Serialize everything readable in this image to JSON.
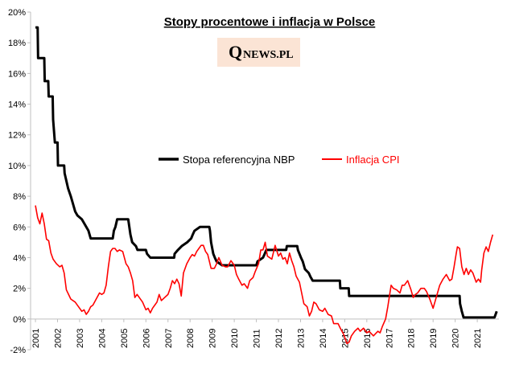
{
  "chart_data": {
    "type": "line",
    "title": "Stopy procentowe i inflacja w Polsce",
    "logo": {
      "initial": "Q",
      "rest": "NEWS.PL"
    },
    "xlim": [
      2000.78,
      2021.98
    ],
    "xticks": [
      2001,
      2002,
      2003,
      2004,
      2005,
      2006,
      2007,
      2008,
      2009,
      2010,
      2011,
      2012,
      2013,
      2014,
      2015,
      2016,
      2017,
      2018,
      2019,
      2020,
      2021
    ],
    "ylim": [
      -2,
      20
    ],
    "yticks": [
      {
        "value": -2,
        "label": "-2%"
      },
      {
        "value": 0,
        "label": "0%"
      },
      {
        "value": 2,
        "label": "2%"
      },
      {
        "value": 4,
        "label": "4%"
      },
      {
        "value": 6,
        "label": "6%"
      },
      {
        "value": 8,
        "label": "8%"
      },
      {
        "value": 10,
        "label": "10%"
      },
      {
        "value": 12,
        "label": "12%"
      },
      {
        "value": 14,
        "label": "14%"
      },
      {
        "value": 16,
        "label": "16%"
      },
      {
        "value": 18,
        "label": "18%"
      },
      {
        "value": 20,
        "label": "20%"
      }
    ],
    "grid": false,
    "series": [
      {
        "name": "Stopa referencyjna NBP",
        "color": "#000000",
        "x": [
          2001,
          2001.1,
          2001.12,
          2001.4,
          2001.42,
          2001.58,
          2001.6,
          2001.78,
          2001.8,
          2001.88,
          2002.0,
          2002.02,
          2002.3,
          2002.32,
          2002.4,
          2002.48,
          2002.6,
          2002.7,
          2002.8,
          2002.9,
          2003.1,
          2003.2,
          2003.3,
          2003.4,
          2003.5,
          2004.5,
          2004.55,
          2004.62,
          2004.7,
          2005.2,
          2005.25,
          2005.3,
          2005.38,
          2005.55,
          2005.62,
          2006.0,
          2006.05,
          2006.2,
          2007.28,
          2007.3,
          2007.45,
          2007.62,
          2007.87,
          2008.05,
          2008.12,
          2008.2,
          2008.45,
          2008.87,
          2008.9,
          2008.95,
          2009.05,
          2009.12,
          2009.2,
          2009.45,
          2011.0,
          2011.05,
          2011.3,
          2011.38,
          2011.45,
          2012.35,
          2012.38,
          2012.85,
          2012.88,
          2012.95,
          2013.02,
          2013.1,
          2013.2,
          2013.37,
          2013.45,
          2013.55,
          2014.78,
          2014.8,
          2015.18,
          2015.2,
          2020.2,
          2020.22,
          2020.3,
          2020.38,
          2021.78,
          2021.88
        ],
        "values": [
          19,
          19,
          17,
          17,
          15.5,
          15.5,
          14.5,
          14.5,
          13,
          11.5,
          11.5,
          10,
          10,
          9.5,
          9,
          8.5,
          8,
          7.5,
          7,
          6.75,
          6.5,
          6.25,
          6,
          5.75,
          5.25,
          5.25,
          5.75,
          6,
          6.5,
          6.5,
          6,
          5.5,
          5,
          4.75,
          4.5,
          4.5,
          4.25,
          4,
          4,
          4.25,
          4.5,
          4.75,
          5,
          5.25,
          5.5,
          5.75,
          6,
          6,
          5.75,
          5,
          4.25,
          4,
          3.75,
          3.5,
          3.5,
          3.75,
          4,
          4.25,
          4.5,
          4.5,
          4.75,
          4.75,
          4.5,
          4.25,
          4,
          3.75,
          3.25,
          3,
          2.75,
          2.5,
          2.5,
          2,
          2,
          1.5,
          1.5,
          1,
          0.5,
          0.1,
          0.1,
          0.5
        ]
      },
      {
        "name": "Inflacja CPI",
        "color": "#ff0000",
        "x": [
          2001.0,
          2001.1,
          2001.2,
          2001.3,
          2001.4,
          2001.5,
          2001.6,
          2001.7,
          2001.8,
          2001.95,
          2002.1,
          2002.2,
          2002.3,
          2002.4,
          2002.5,
          2002.6,
          2002.8,
          2002.95,
          2003.1,
          2003.2,
          2003.3,
          2003.4,
          2003.5,
          2003.6,
          2003.75,
          2003.9,
          2004.0,
          2004.1,
          2004.2,
          2004.3,
          2004.4,
          2004.5,
          2004.6,
          2004.7,
          2004.8,
          2004.95,
          2005.1,
          2005.2,
          2005.3,
          2005.4,
          2005.5,
          2005.6,
          2005.7,
          2005.85,
          2006.0,
          2006.1,
          2006.2,
          2006.3,
          2006.4,
          2006.5,
          2006.6,
          2006.7,
          2006.85,
          2007.0,
          2007.1,
          2007.2,
          2007.3,
          2007.4,
          2007.5,
          2007.6,
          2007.7,
          2007.85,
          2008.0,
          2008.1,
          2008.2,
          2008.3,
          2008.4,
          2008.5,
          2008.6,
          2008.7,
          2008.8,
          2008.95,
          2009.1,
          2009.2,
          2009.3,
          2009.45,
          2009.6,
          2009.7,
          2009.85,
          2010.0,
          2010.1,
          2010.2,
          2010.35,
          2010.45,
          2010.6,
          2010.7,
          2010.85,
          2010.95,
          2011.1,
          2011.2,
          2011.3,
          2011.4,
          2011.5,
          2011.6,
          2011.7,
          2011.85,
          2012.0,
          2012.1,
          2012.2,
          2012.3,
          2012.4,
          2012.5,
          2012.6,
          2012.7,
          2012.8,
          2012.95,
          2013.05,
          2013.15,
          2013.3,
          2013.4,
          2013.5,
          2013.6,
          2013.7,
          2013.85,
          2014.0,
          2014.1,
          2014.25,
          2014.4,
          2014.5,
          2014.6,
          2014.7,
          2014.8,
          2014.95,
          2015.1,
          2015.2,
          2015.3,
          2015.45,
          2015.6,
          2015.7,
          2015.85,
          2016.0,
          2016.1,
          2016.3,
          2016.5,
          2016.6,
          2016.7,
          2016.85,
          2016.95,
          2017.1,
          2017.2,
          2017.35,
          2017.5,
          2017.6,
          2017.7,
          2017.85,
          2018.0,
          2018.1,
          2018.2,
          2018.3,
          2018.45,
          2018.6,
          2018.7,
          2018.85,
          2019.0,
          2019.1,
          2019.2,
          2019.3,
          2019.45,
          2019.6,
          2019.75,
          2019.85,
          2019.95,
          2020.05,
          2020.1,
          2020.2,
          2020.3,
          2020.4,
          2020.5,
          2020.6,
          2020.7,
          2020.8,
          2020.95,
          2021.05,
          2021.15,
          2021.2,
          2021.3,
          2021.4,
          2021.5,
          2021.6,
          2021.7
        ],
        "values": [
          7.4,
          6.6,
          6.2,
          6.9,
          6.2,
          5.2,
          5.1,
          4.3,
          3.9,
          3.6,
          3.4,
          3.5,
          3.0,
          1.9,
          1.6,
          1.3,
          1.1,
          0.8,
          0.5,
          0.6,
          0.3,
          0.5,
          0.8,
          0.9,
          1.3,
          1.7,
          1.6,
          1.7,
          2.2,
          3.4,
          4.4,
          4.6,
          4.6,
          4.4,
          4.5,
          4.4,
          3.6,
          3.4,
          3.0,
          2.5,
          1.4,
          1.6,
          1.4,
          1.1,
          0.6,
          0.7,
          0.4,
          0.7,
          0.9,
          1.1,
          1.6,
          1.2,
          1.4,
          1.6,
          2.0,
          2.5,
          2.3,
          2.6,
          2.3,
          1.5,
          3.0,
          3.6,
          4.0,
          4.2,
          4.1,
          4.4,
          4.6,
          4.8,
          4.8,
          4.4,
          4.2,
          3.3,
          3.3,
          3.6,
          4.0,
          3.5,
          3.4,
          3.4,
          3.8,
          3.5,
          2.9,
          2.6,
          2.2,
          2.3,
          2.0,
          2.5,
          2.7,
          3.1,
          3.6,
          4.5,
          4.5,
          5.0,
          4.1,
          4.0,
          3.9,
          4.8,
          4.1,
          4.3,
          3.9,
          4.0,
          3.6,
          4.3,
          3.8,
          3.4,
          2.8,
          2.4,
          1.7,
          1.0,
          0.8,
          0.2,
          0.5,
          1.1,
          1.0,
          0.6,
          0.5,
          0.7,
          0.3,
          0.2,
          -0.3,
          -0.3,
          -0.3,
          -0.6,
          -1.0,
          -1.6,
          -1.5,
          -1.1,
          -0.8,
          -0.6,
          -0.8,
          -0.6,
          -0.9,
          -0.8,
          -1.1,
          -0.8,
          -0.9,
          -0.5,
          0.0,
          0.8,
          2.2,
          2.0,
          1.9,
          1.7,
          2.2,
          2.2,
          2.5,
          1.9,
          1.4,
          1.6,
          1.7,
          2.0,
          2.0,
          1.8,
          1.3,
          0.7,
          1.2,
          1.7,
          2.2,
          2.6,
          2.9,
          2.5,
          2.6,
          3.4,
          4.3,
          4.7,
          4.6,
          3.4,
          2.9,
          3.3,
          2.9,
          3.2,
          3.0,
          2.4,
          2.6,
          2.4,
          3.2,
          4.3,
          4.7,
          4.4,
          5.0,
          5.5
        ]
      }
    ]
  }
}
